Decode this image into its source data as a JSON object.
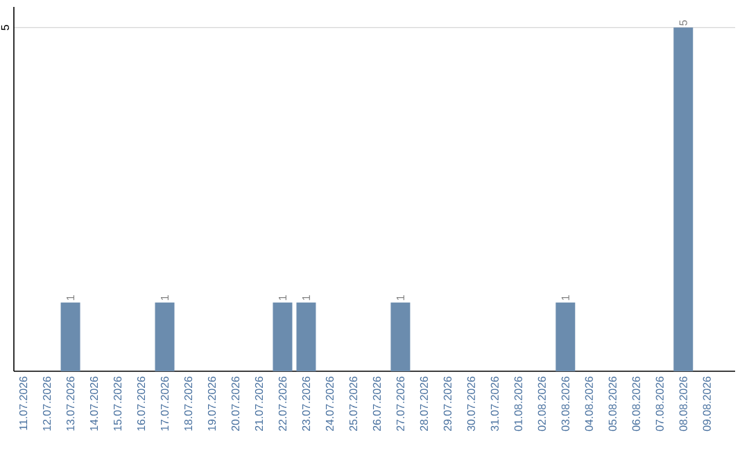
{
  "chart_data": {
    "type": "bar",
    "categories": [
      "11.07.2026",
      "12.07.2026",
      "13.07.2026",
      "14.07.2026",
      "15.07.2026",
      "16.07.2026",
      "17.07.2026",
      "18.07.2026",
      "19.07.2026",
      "20.07.2026",
      "21.07.2026",
      "22.07.2026",
      "23.07.2026",
      "24.07.2026",
      "25.07.2026",
      "26.07.2026",
      "27.07.2026",
      "28.07.2026",
      "29.07.2026",
      "30.07.2026",
      "31.07.2026",
      "01.08.2026",
      "02.08.2026",
      "03.08.2026",
      "04.08.2026",
      "05.08.2026",
      "06.08.2026",
      "07.08.2026",
      "08.08.2026",
      "09.08.2026"
    ],
    "values": [
      0,
      0,
      1,
      0,
      0,
      0,
      1,
      0,
      0,
      0,
      0,
      1,
      1,
      0,
      0,
      0,
      1,
      0,
      0,
      0,
      0,
      0,
      0,
      1,
      0,
      0,
      0,
      0,
      5,
      0
    ],
    "value_labels": [
      null,
      null,
      "1",
      null,
      null,
      null,
      "1",
      null,
      null,
      null,
      null,
      "1",
      "1",
      null,
      null,
      null,
      "1",
      null,
      null,
      null,
      null,
      null,
      null,
      "1",
      null,
      null,
      null,
      null,
      "5",
      null
    ],
    "color": "#6b8cae",
    "ylim": [
      0,
      5.3
    ],
    "yticks": [
      5
    ],
    "grid": "y"
  }
}
